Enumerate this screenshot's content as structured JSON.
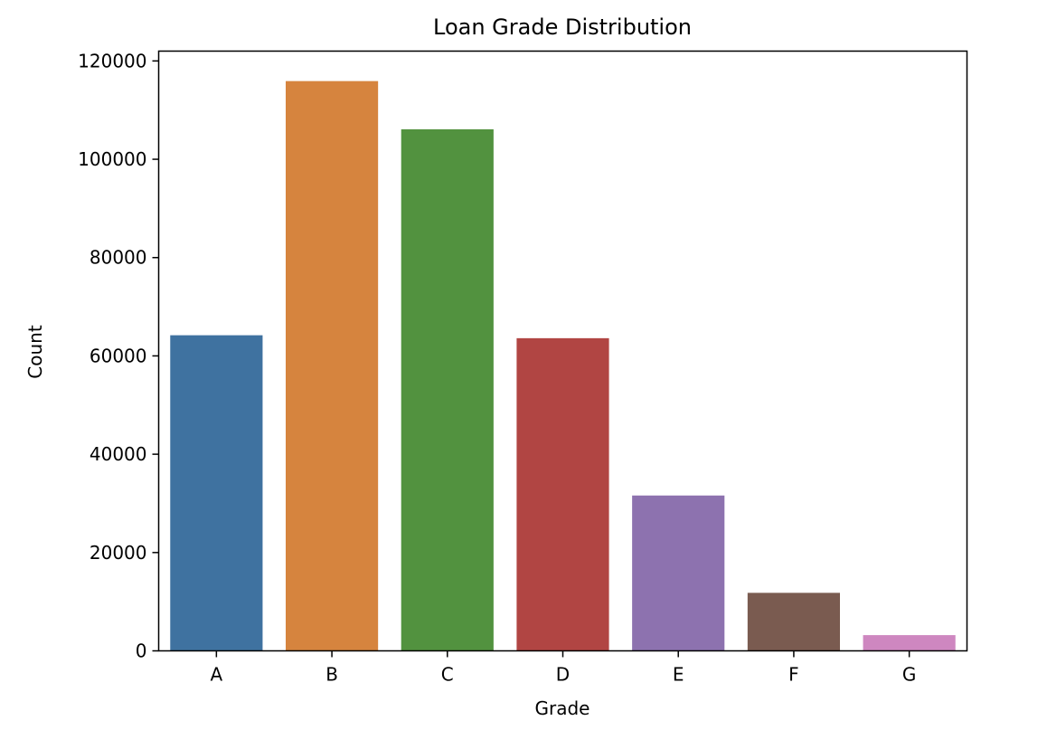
{
  "chart_data": {
    "type": "bar",
    "title": "Loan Grade Distribution",
    "xlabel": "Grade",
    "ylabel": "Count",
    "categories": [
      "A",
      "B",
      "C",
      "D",
      "E",
      "F",
      "G"
    ],
    "values": [
      64200,
      115900,
      106100,
      63600,
      31600,
      11800,
      3200
    ],
    "colors": [
      "#3f72a0",
      "#d6843e",
      "#52923f",
      "#b14543",
      "#8d72af",
      "#7a5b50",
      "#ce87c0"
    ],
    "ylim": [
      0,
      122000
    ],
    "yticks": [
      0,
      20000,
      40000,
      60000,
      80000,
      100000,
      120000
    ],
    "ytick_labels": [
      "0",
      "20000",
      "40000",
      "60000",
      "80000",
      "100000",
      "120000"
    ],
    "grid": false,
    "legend": "none"
  }
}
